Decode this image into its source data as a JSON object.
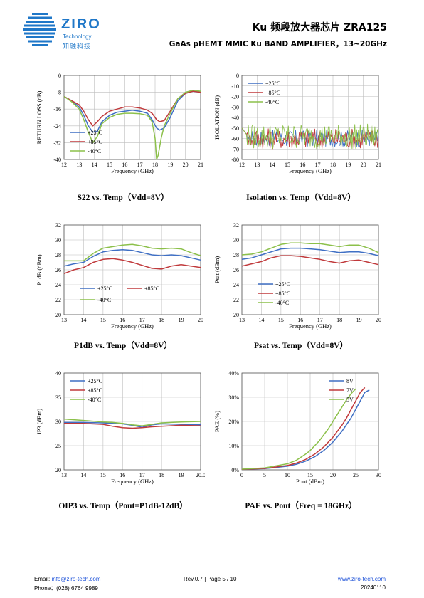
{
  "header": {
    "brand": "ZIRO",
    "brand_sub": "Technology",
    "brand_cn": "知融科技",
    "title": "Ku 频段放大器芯片 ZRA125",
    "subtitle": "GaAs pHEMT MMIC Ku BAND AMPLIFIER，13~20GHz",
    "brand_color": "#1f77c8"
  },
  "footer": {
    "email_label": "Email:",
    "email": "info@ziro-tech.com",
    "phone_label": "Phone：",
    "phone": "(028) 6764 9989",
    "rev": "Rev.0.7 | Page 5 / 10",
    "web": "www.ziro-tech.com",
    "date": "20240110"
  },
  "colors": {
    "s1": "#3f6fc4",
    "s2": "#c0393b",
    "s3": "#8cc04a"
  },
  "chart_data": [
    {
      "id": "s22",
      "type": "line",
      "caption": "S22 vs. Temp（Vdd=8V）",
      "xlabel": "Frequency (GHz)",
      "ylabel": "RETURN LOSS (dB)",
      "xlim": [
        12,
        21
      ],
      "ylim": [
        -40,
        0
      ],
      "xticks": [
        12,
        13,
        14,
        15,
        16,
        17,
        18,
        19,
        20,
        21
      ],
      "yticks": [
        0,
        -8,
        -16,
        -24,
        -32,
        -40
      ],
      "ytick_labels": [
        "0",
        "-8",
        "-16",
        "-24",
        "-32",
        "-40"
      ],
      "legend": "bottom-left",
      "grid": true,
      "series": [
        {
          "name": "+25°C",
          "color": "s1",
          "x": [
            12,
            12.5,
            13,
            13.3,
            13.6,
            13.9,
            14.2,
            14.5,
            15,
            15.5,
            16,
            16.5,
            17,
            17.5,
            17.8,
            18.1,
            18.3,
            18.6,
            19,
            19.5,
            20,
            20.5,
            21
          ],
          "y": [
            -10,
            -12,
            -15,
            -19,
            -24,
            -27,
            -26.5,
            -22,
            -19,
            -17.5,
            -17,
            -16.5,
            -17,
            -18,
            -21,
            -25,
            -26,
            -25,
            -20,
            -12,
            -8.5,
            -7.5,
            -8
          ]
        },
        {
          "name": "+85°C",
          "color": "s2",
          "x": [
            12,
            12.5,
            13,
            13.3,
            13.6,
            13.9,
            14.2,
            14.5,
            15,
            15.5,
            16,
            16.5,
            17,
            17.5,
            17.8,
            18.1,
            18.3,
            18.6,
            19,
            19.5,
            20,
            20.5,
            21
          ],
          "y": [
            -10,
            -12,
            -14,
            -17,
            -21,
            -24,
            -22,
            -19.5,
            -17,
            -16,
            -15,
            -15,
            -15.5,
            -16.5,
            -18,
            -21,
            -22,
            -21.5,
            -17,
            -11,
            -8.5,
            -7.5,
            -8
          ]
        },
        {
          "name": "-40°C",
          "color": "s3",
          "x": [
            12,
            12.5,
            13,
            13.3,
            13.6,
            13.9,
            14.2,
            14.5,
            15,
            15.5,
            16,
            16.5,
            17,
            17.5,
            17.8,
            18.0,
            18.1,
            18.2,
            18.4,
            18.6,
            19,
            19.5,
            20,
            20.5,
            21
          ],
          "y": [
            -10,
            -12.5,
            -16,
            -21,
            -27,
            -32,
            -29,
            -23,
            -20,
            -18.5,
            -18,
            -18,
            -18.2,
            -19,
            -22,
            -30,
            -40,
            -38,
            -30,
            -24,
            -18,
            -11,
            -8,
            -7,
            -7.5
          ]
        }
      ]
    },
    {
      "id": "iso",
      "type": "line",
      "caption": "Isolation vs. Temp（Vdd=8V）",
      "xlabel": "Frequency (GHz)",
      "ylabel": "ISOLATION (dB)",
      "xlim": [
        12,
        21
      ],
      "ylim": [
        -80,
        0
      ],
      "xticks": [
        12,
        13,
        14,
        15,
        16,
        17,
        18,
        19,
        20,
        21
      ],
      "yticks": [
        0,
        -10,
        -20,
        -30,
        -40,
        -50,
        -60,
        -70,
        -80
      ],
      "ytick_labels": [
        "0",
        "-10",
        "-20",
        "-30",
        "-40",
        "-50",
        "-60",
        "-70",
        "-80"
      ],
      "legend": "top-left",
      "grid": true,
      "noise": true,
      "series": [
        {
          "name": "+25°C",
          "color": "s1",
          "base": -60,
          "amp": 8
        },
        {
          "name": "+85°C",
          "color": "s2",
          "base": -60,
          "amp": 10
        },
        {
          "name": "-40°C",
          "color": "s3",
          "base": -58,
          "amp": 12
        }
      ]
    },
    {
      "id": "p1db",
      "type": "line",
      "caption": "P1dB vs. Temp（Vdd=8V）",
      "xlabel": "Frequency (GHz)",
      "ylabel": "P1dB (dBm)",
      "xlim": [
        13,
        20
      ],
      "ylim": [
        20,
        32
      ],
      "xticks": [
        13,
        14,
        15,
        16,
        17,
        18,
        19,
        20
      ],
      "yticks": [
        20,
        22,
        24,
        26,
        28,
        30,
        32
      ],
      "ytick_labels": [
        "20",
        "22",
        "24",
        "26",
        "28",
        "30",
        "32"
      ],
      "legend": "bottom-left",
      "grid": true,
      "series": [
        {
          "name": "+25°C",
          "color": "s1",
          "x": [
            13,
            13.5,
            14,
            14.5,
            15,
            15.5,
            16,
            16.5,
            17,
            17.5,
            18,
            18.5,
            19,
            19.5,
            20
          ],
          "y": [
            26.5,
            26.8,
            27,
            27.8,
            28.4,
            28.6,
            28.7,
            28.6,
            28.3,
            28,
            27.9,
            28,
            27.9,
            27.6,
            27.3
          ]
        },
        {
          "name": "+85°C",
          "color": "s2",
          "x": [
            13,
            13.5,
            14,
            14.5,
            15,
            15.5,
            16,
            16.5,
            17,
            17.5,
            18,
            18.5,
            19,
            19.5,
            20
          ],
          "y": [
            25.5,
            26,
            26.3,
            27,
            27.4,
            27.5,
            27.3,
            27,
            26.6,
            26.2,
            26.1,
            26.5,
            26.7,
            26.5,
            26.3
          ]
        },
        {
          "name": "-40°C",
          "color": "s3",
          "x": [
            13,
            13.5,
            14,
            14.5,
            15,
            15.5,
            16,
            16.5,
            17,
            17.5,
            18,
            18.5,
            19,
            19.5,
            20
          ],
          "y": [
            27.2,
            27.2,
            27.2,
            28.2,
            28.9,
            29.1,
            29.3,
            29.4,
            29.2,
            28.9,
            28.8,
            28.9,
            28.8,
            28.3,
            27.9
          ]
        }
      ]
    },
    {
      "id": "psat",
      "type": "line",
      "caption": "Psat vs. Temp（Vdd=8V）",
      "xlabel": "Frequency (GHz)",
      "ylabel": "Psat (dBm)",
      "xlim": [
        13,
        20
      ],
      "ylim": [
        20,
        32
      ],
      "xticks": [
        13,
        14,
        15,
        16,
        17,
        18,
        19,
        20
      ],
      "yticks": [
        20,
        22,
        24,
        26,
        28,
        30,
        32
      ],
      "ytick_labels": [
        "20",
        "22",
        "24",
        "26",
        "28",
        "30",
        "32"
      ],
      "legend": "bottom-left",
      "grid": true,
      "series": [
        {
          "name": "+25°C",
          "color": "s1",
          "x": [
            13,
            13.5,
            14,
            14.5,
            15,
            15.5,
            16,
            16.5,
            17,
            17.5,
            18,
            18.5,
            19,
            19.5,
            20
          ],
          "y": [
            27.4,
            27.6,
            28,
            28.4,
            28.8,
            28.9,
            28.9,
            28.8,
            28.7,
            28.5,
            28.3,
            28.4,
            28.4,
            28.2,
            27.9
          ]
        },
        {
          "name": "+85°C",
          "color": "s2",
          "x": [
            13,
            13.5,
            14,
            14.5,
            15,
            15.5,
            16,
            16.5,
            17,
            17.5,
            18,
            18.5,
            19,
            19.5,
            20
          ],
          "y": [
            26.5,
            26.8,
            27.1,
            27.6,
            27.9,
            27.9,
            27.8,
            27.6,
            27.4,
            27.1,
            26.9,
            27.2,
            27.3,
            27,
            26.7
          ]
        },
        {
          "name": "-40°C",
          "color": "s3",
          "x": [
            13,
            13.5,
            14,
            14.5,
            15,
            15.5,
            16,
            16.5,
            17,
            17.5,
            18,
            18.5,
            19,
            19.5,
            20
          ],
          "y": [
            28,
            28.1,
            28.4,
            28.9,
            29.4,
            29.6,
            29.6,
            29.5,
            29.5,
            29.3,
            29.1,
            29.3,
            29.3,
            28.9,
            28.3
          ]
        }
      ]
    },
    {
      "id": "oip3",
      "type": "line",
      "caption": "OIP3 vs. Temp（Pout=P1dB-12dB）",
      "xlabel": "Frequency (GHz)",
      "ylabel": "IP3 (dBm)",
      "xlim": [
        13,
        20
      ],
      "ylim": [
        20,
        40
      ],
      "xticks": [
        13,
        14,
        15,
        16,
        17,
        18,
        19,
        20
      ],
      "xtick_labels": [
        "13",
        "14",
        "15",
        "16",
        "17",
        "18",
        "19",
        "20.0"
      ],
      "yticks": [
        20,
        25,
        30,
        35,
        40
      ],
      "ytick_labels": [
        "20",
        "25",
        "30",
        "35",
        "40"
      ],
      "legend": "top-left",
      "grid": true,
      "series": [
        {
          "name": "+25°C",
          "color": "s1",
          "x": [
            13,
            14,
            15,
            15.5,
            16,
            16.5,
            17,
            17.5,
            18,
            19,
            20
          ],
          "y": [
            29.8,
            29.8,
            29.7,
            29.6,
            29.5,
            29.2,
            28.8,
            29.3,
            29.5,
            29.4,
            29.3
          ]
        },
        {
          "name": "+85°C",
          "color": "s2",
          "x": [
            13,
            14,
            15,
            15.5,
            16,
            16.5,
            17,
            17.5,
            18,
            19,
            20
          ],
          "y": [
            29.6,
            29.6,
            29.4,
            29,
            28.7,
            28.6,
            28.7,
            28.9,
            29,
            29.2,
            29.1
          ]
        },
        {
          "name": "-40°C",
          "color": "s3",
          "x": [
            13,
            14,
            15,
            15.5,
            16,
            16.5,
            17,
            17.5,
            18,
            19,
            20
          ],
          "y": [
            30.5,
            30.2,
            29.9,
            29.8,
            29.6,
            29.3,
            29.1,
            29.4,
            29.7,
            29.9,
            30
          ]
        }
      ]
    },
    {
      "id": "pae",
      "type": "line",
      "caption": "PAE vs. Pout（Freq = 18GHz）",
      "xlabel": "Pout (dBm)",
      "ylabel": "PAE (%)",
      "xlim": [
        0,
        30
      ],
      "ylim": [
        0,
        40
      ],
      "xticks": [
        0,
        5,
        10,
        15,
        20,
        25,
        30
      ],
      "yticks": [
        0,
        10,
        20,
        30,
        40
      ],
      "ytick_labels": [
        "0%",
        "10%",
        "20%",
        "30%",
        "40%"
      ],
      "legend": "top-right",
      "grid": true,
      "series": [
        {
          "name": "8V",
          "color": "s1",
          "x": [
            0,
            5,
            10,
            12,
            14,
            16,
            18,
            20,
            22,
            24,
            25,
            26,
            27,
            28
          ],
          "y": [
            0.2,
            0.5,
            1.5,
            2.3,
            3.6,
            5.4,
            8,
            11.5,
            16,
            21.5,
            25,
            28.5,
            32,
            33
          ]
        },
        {
          "name": "7V",
          "color": "s2",
          "x": [
            0,
            5,
            10,
            12,
            14,
            16,
            18,
            20,
            22,
            23,
            24,
            25,
            26,
            27
          ],
          "y": [
            0.2,
            0.6,
            1.8,
            2.8,
            4.3,
            6.5,
            9.5,
            13.5,
            18.5,
            21.5,
            25,
            28.5,
            32,
            34
          ]
        },
        {
          "name": "5V",
          "color": "s3",
          "x": [
            0,
            5,
            10,
            12,
            14,
            15,
            16,
            17,
            18,
            19,
            20,
            21,
            22,
            23,
            24,
            25
          ],
          "y": [
            0.3,
            0.8,
            2.5,
            4,
            6.5,
            8,
            10,
            12,
            14.5,
            17,
            20,
            23,
            26,
            29,
            31.5,
            33.5
          ]
        }
      ]
    }
  ]
}
